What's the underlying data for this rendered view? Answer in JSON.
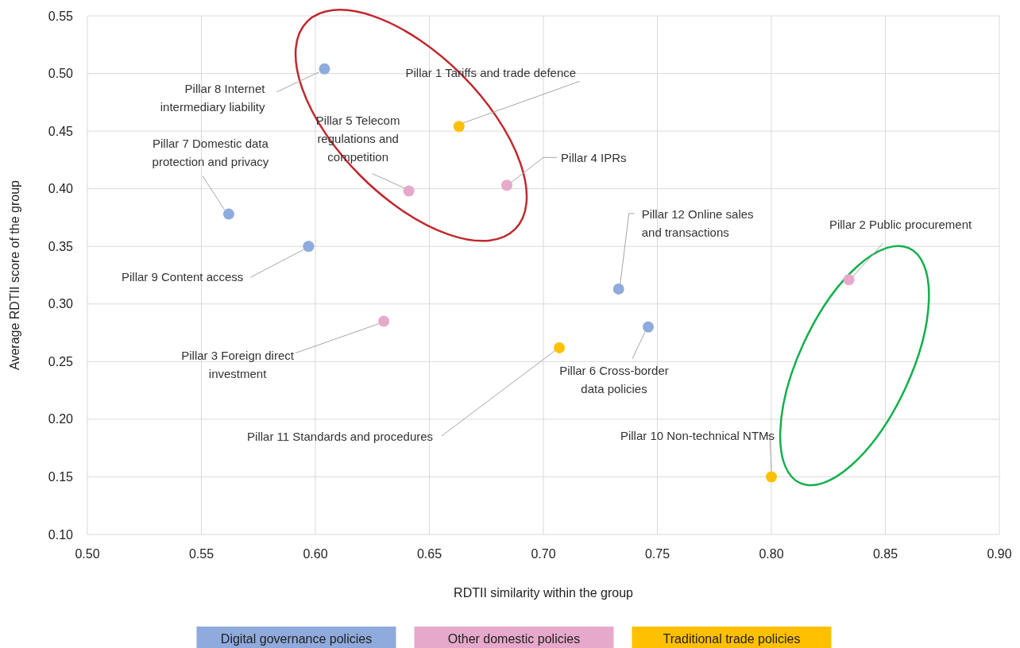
{
  "chart_data": {
    "type": "scatter",
    "xlabel": "RDTII similarity within the group",
    "ylabel": "Average RDTII score of the group",
    "xlim": [
      0.5,
      0.9
    ],
    "xticks": [
      {
        "value": 0.5,
        "label": "0.50"
      },
      {
        "value": 0.55,
        "label": "0.55"
      },
      {
        "value": 0.6,
        "label": "0.60"
      },
      {
        "value": 0.65,
        "label": "0.65"
      },
      {
        "value": 0.7,
        "label": "0.70"
      },
      {
        "value": 0.75,
        "label": "0.75"
      },
      {
        "value": 0.8,
        "label": "0.80"
      },
      {
        "value": 0.85,
        "label": "0.85"
      },
      {
        "value": 0.9,
        "label": "0.90"
      }
    ],
    "ylim": [
      0.1,
      0.55
    ],
    "yticks": [
      {
        "value": 0.1,
        "label": "0.10"
      },
      {
        "value": 0.15,
        "label": "0.15"
      },
      {
        "value": 0.2,
        "label": "0.20"
      },
      {
        "value": 0.25,
        "label": "0.25"
      },
      {
        "value": 0.3,
        "label": "0.30"
      },
      {
        "value": 0.35,
        "label": "0.35"
      },
      {
        "value": 0.4,
        "label": "0.40"
      },
      {
        "value": 0.45,
        "label": "0.45"
      },
      {
        "value": 0.5,
        "label": "0.50"
      },
      {
        "value": 0.55,
        "label": "0.55"
      }
    ],
    "grid": true,
    "legend": "bottom",
    "marker": "circle",
    "series": [
      {
        "name": "Digital governance policies",
        "color": "#8faadc",
        "x": [
          0.604,
          0.562,
          0.597,
          0.733,
          0.746
        ],
        "values": [
          0.504,
          0.378,
          0.35,
          0.313,
          0.28
        ]
      },
      {
        "name": "Other domestic policies",
        "color": "#e6a9cb",
        "x": [
          0.641,
          0.684,
          0.834,
          0.63
        ],
        "values": [
          0.398,
          0.403,
          0.321,
          0.285
        ]
      },
      {
        "name": "Traditional trade policies",
        "color": "#ffc000",
        "x": [
          0.663,
          0.707,
          0.8
        ],
        "values": [
          0.454,
          0.262,
          0.15
        ]
      }
    ],
    "annotations": [
      {
        "text": "Pillar 8 Internet intermediary liability",
        "x": 0.604,
        "y": 0.504
      },
      {
        "text": "Pillar 1 Tariffs and trade defence",
        "x": 0.663,
        "y": 0.454
      },
      {
        "text": "Pillar 5 Telecom regulations and competition",
        "x": 0.641,
        "y": 0.398
      },
      {
        "text": "Pillar 4 IPRs",
        "x": 0.684,
        "y": 0.403
      },
      {
        "text": "Pillar 7 Domestic data protection and privacy",
        "x": 0.562,
        "y": 0.378
      },
      {
        "text": "Pillar 9 Content access",
        "x": 0.597,
        "y": 0.35
      },
      {
        "text": "Pillar 12 Online sales and transactions",
        "x": 0.733,
        "y": 0.313
      },
      {
        "text": "Pillar 2 Public procurement",
        "x": 0.834,
        "y": 0.321
      },
      {
        "text": "Pillar 3 Foreign direct investment",
        "x": 0.63,
        "y": 0.285
      },
      {
        "text": "Pillar 11 Standards and procedures",
        "x": 0.707,
        "y": 0.262
      },
      {
        "text": "Pillar 6 Cross-border data policies",
        "x": 0.746,
        "y": 0.28
      },
      {
        "text": "Pillar 10 Non-technical NTMs",
        "x": 0.8,
        "y": 0.15
      }
    ]
  }
}
